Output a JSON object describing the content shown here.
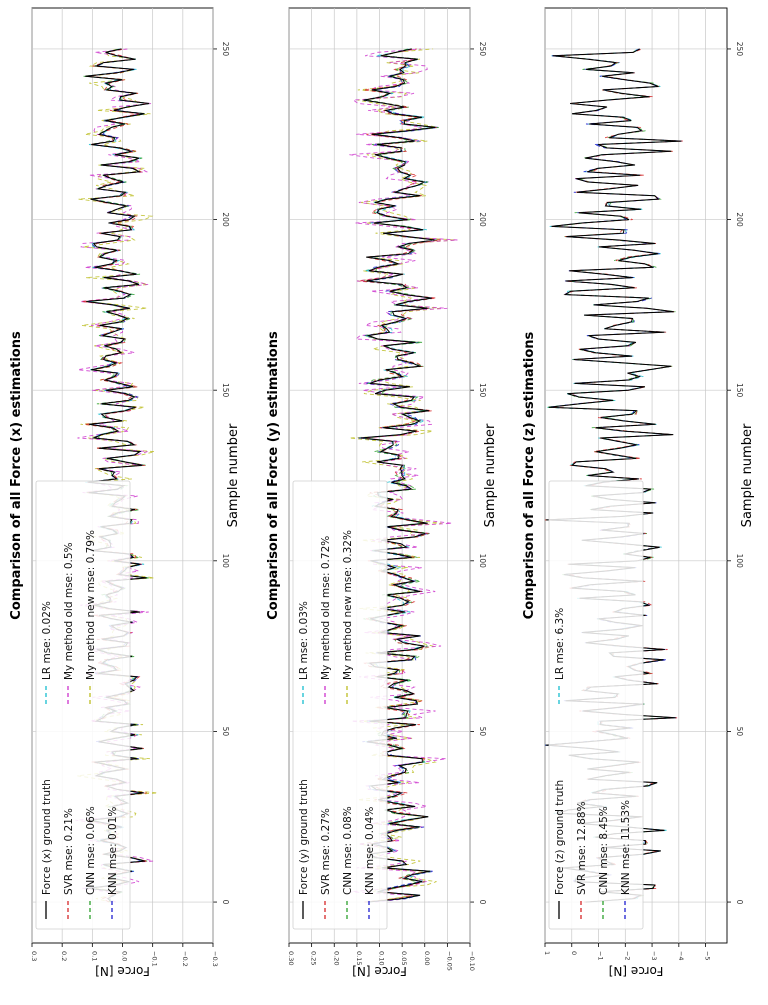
{
  "chart_data": [
    {
      "type": "line",
      "title": "Comparison of all Force (x) estimations",
      "xlabel": "Sample number",
      "ylabel": "Force [N]",
      "xlim": [
        -12,
        262
      ],
      "ylim": [
        -0.3,
        0.3
      ],
      "xticks": [
        0,
        50,
        100,
        150,
        200,
        250
      ],
      "yticks": [
        -0.3,
        -0.2,
        -0.1,
        0.0,
        0.1,
        0.2,
        0.3
      ],
      "ytick_labels": [
        "−0.3",
        "−0.2",
        "−0.1",
        "0.0",
        "0.1",
        "0.2",
        "0.3"
      ],
      "grid": true,
      "legend_position": "lower-left",
      "signal": {
        "base": 0.02,
        "amp": 0.075
      },
      "series": [
        {
          "name": "Force (x) ground truth",
          "color": "#000000",
          "dash": "",
          "noise": 0.0
        },
        {
          "name": "SVR mse: 0.21%",
          "color": "#d62728",
          "dash": "4,3",
          "noise": 0.012
        },
        {
          "name": "CNN mse: 0.06%",
          "color": "#2ca02c",
          "dash": "4,3",
          "noise": 0.01
        },
        {
          "name": "KNN mse: 0.01%",
          "color": "#1f1fd0",
          "dash": "4,3",
          "noise": 0.008
        },
        {
          "name": "LR mse: 0.02%",
          "color": "#17becf",
          "dash": "4,3",
          "noise": 0.008
        },
        {
          "name": "My method old mse: 0.5%",
          "color": "#cc33cc",
          "dash": "4,3",
          "noise": 0.035
        },
        {
          "name": "My method new mse: 0.79%",
          "color": "#bcbd22",
          "dash": "4,3",
          "noise": 0.04
        }
      ]
    },
    {
      "type": "line",
      "title": "Comparison of all Force (y) estimations",
      "xlabel": "Sample number",
      "ylabel": "Force [N]",
      "xlim": [
        -12,
        262
      ],
      "ylim": [
        -0.1,
        0.3
      ],
      "xticks": [
        0,
        50,
        100,
        150,
        200,
        250
      ],
      "yticks": [
        -0.1,
        -0.05,
        0.0,
        0.05,
        0.1,
        0.15,
        0.2,
        0.25,
        0.3
      ],
      "ytick_labels": [
        "−0.10",
        "−0.05",
        "0.00",
        "0.05",
        "0.10",
        "0.15",
        "0.20",
        "0.25",
        "0.30"
      ],
      "grid": true,
      "legend_position": "lower-left",
      "signal": {
        "base": 0.06,
        "amp": 0.06
      },
      "series": [
        {
          "name": "Force (y) ground truth",
          "color": "#000000",
          "dash": "",
          "noise": 0.0
        },
        {
          "name": "SVR mse: 0.27%",
          "color": "#d62728",
          "dash": "4,3",
          "noise": 0.012
        },
        {
          "name": "CNN mse: 0.08%",
          "color": "#2ca02c",
          "dash": "4,3",
          "noise": 0.01
        },
        {
          "name": "KNN mse: 0.04%",
          "color": "#1f1fd0",
          "dash": "4,3",
          "noise": 0.008
        },
        {
          "name": "LR mse: 0.03%",
          "color": "#17becf",
          "dash": "4,3",
          "noise": 0.008
        },
        {
          "name": "My method old mse: 0.72%",
          "color": "#cc33cc",
          "dash": "4,3",
          "noise": 0.04
        },
        {
          "name": "My method new mse: 0.32%",
          "color": "#bcbd22",
          "dash": "4,3",
          "noise": 0.03
        }
      ]
    },
    {
      "type": "line",
      "title": "Comparison of all Force (z) estimations",
      "xlabel": "Sample number",
      "ylabel": "Force [N]",
      "xlim": [
        -12,
        262
      ],
      "ylim": [
        -5.8,
        1.0
      ],
      "xticks": [
        0,
        50,
        100,
        150,
        200,
        250
      ],
      "yticks": [
        -5,
        -4,
        -3,
        -2,
        -1,
        0,
        1
      ],
      "ytick_labels": [
        "−5",
        "−4",
        "−3",
        "−2",
        "−1",
        "0",
        "1"
      ],
      "grid": true,
      "legend_position": "lower-left",
      "signal": {
        "base": -1.6,
        "amp": 1.8
      },
      "series": [
        {
          "name": "Force (z) ground truth",
          "color": "#000000",
          "dash": "",
          "noise": 0.0
        },
        {
          "name": "SVR mse: 12.88%",
          "color": "#d62728",
          "dash": "4,3",
          "noise": 0.12
        },
        {
          "name": "CNN mse: 8.45%",
          "color": "#2ca02c",
          "dash": "4,3",
          "noise": 0.1
        },
        {
          "name": "KNN mse: 11.53%",
          "color": "#1f1fd0",
          "dash": "4,3",
          "noise": 0.1
        },
        {
          "name": "LR mse: 6.3%",
          "color": "#17becf",
          "dash": "4,3",
          "noise": 0.08
        }
      ]
    }
  ]
}
